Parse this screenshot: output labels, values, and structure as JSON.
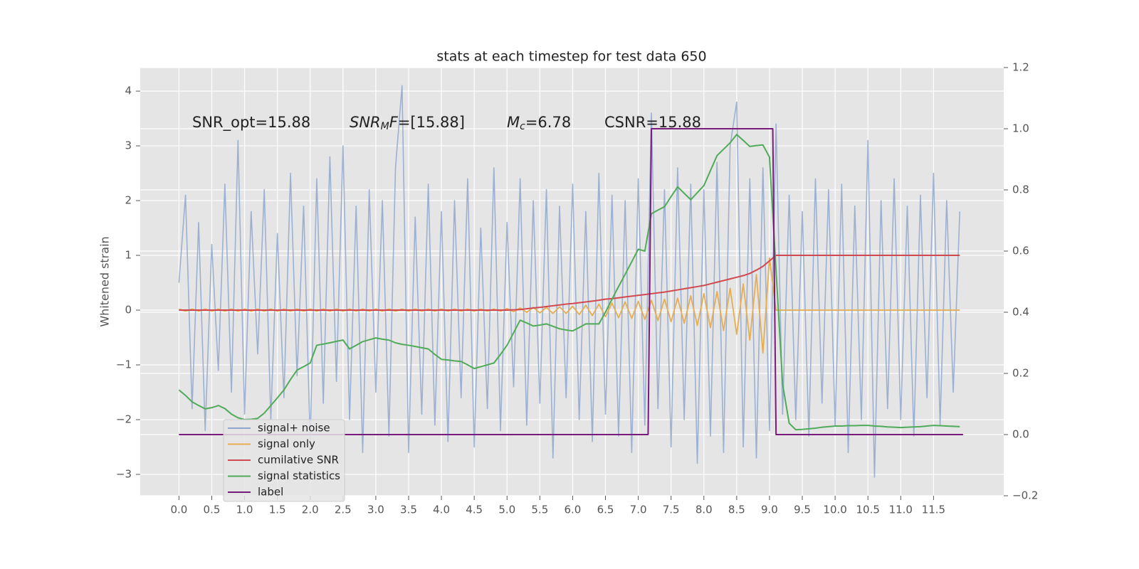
{
  "chart_data": {
    "type": "line",
    "title": "stats at each timestep for test data 650",
    "ylabel": "Whitened strain",
    "annotations": [
      [
        {
          "text": "SNR_opt=15.88",
          "style": "rm"
        }
      ],
      [
        {
          "text": "SNR",
          "style": "it"
        },
        {
          "text": "M",
          "style": "sub"
        },
        {
          "text": "F",
          "style": "it"
        },
        {
          "text": "=[15.88]",
          "style": "rm"
        }
      ],
      [
        {
          "text": "M",
          "style": "it"
        },
        {
          "text": "c",
          "style": "sub"
        },
        {
          "text": "=6.78",
          "style": "rm"
        }
      ],
      [
        {
          "text": "CSNR=15.88",
          "style": "rm"
        }
      ]
    ],
    "xlim": [
      -0.59,
      12.57
    ],
    "ylim": [
      -3.39,
      4.43
    ],
    "y2lim": [
      -0.2,
      1.2
    ],
    "grid": true,
    "legend": "lower left",
    "xticks": [
      {
        "value": 0,
        "label": "0.0"
      },
      0.5,
      {
        "value": 1,
        "label": "1.0"
      },
      1.5,
      {
        "value": 2,
        "label": "2.0"
      },
      2.5,
      {
        "value": 3,
        "label": "3.0"
      },
      3.5,
      {
        "value": 4,
        "label": "4.0"
      },
      4.5,
      {
        "value": 5,
        "label": "5.0"
      },
      5.5,
      {
        "value": 6,
        "label": "6.0"
      },
      6.5,
      {
        "value": 7,
        "label": "7.0"
      },
      7.5,
      {
        "value": 8,
        "label": "8.0"
      },
      8.5,
      {
        "value": 9,
        "label": "9.0"
      },
      9.5,
      {
        "value": 10,
        "label": "10.0"
      },
      10.5,
      {
        "value": 11,
        "label": "11.0"
      },
      11.5
    ],
    "yticks": [
      {
        "value": -3,
        "label": "−3"
      },
      {
        "value": -2,
        "label": "−2"
      },
      {
        "value": -1,
        "label": "−1"
      },
      0,
      1,
      2,
      3,
      4
    ],
    "y2ticks": [
      {
        "value": -0.2,
        "label": "−0.2"
      },
      {
        "value": 0,
        "label": "0.0"
      },
      0.2,
      0.4,
      0.6,
      0.8,
      {
        "value": 1,
        "label": "1.0"
      },
      1.2
    ],
    "x": [
      0,
      0.1,
      0.2,
      0.3,
      0.4,
      0.5,
      0.6,
      0.7,
      0.8,
      0.9,
      1,
      1.1,
      1.2,
      1.3,
      1.4,
      1.5,
      1.6,
      1.7,
      1.8,
      1.9,
      2,
      2.1,
      2.2,
      2.3,
      2.4,
      2.5,
      2.6,
      2.7,
      2.8,
      2.9,
      3,
      3.1,
      3.2,
      3.3,
      3.4,
      3.5,
      3.6,
      3.7,
      3.8,
      3.9,
      4,
      4.1,
      4.2,
      4.3,
      4.4,
      4.5,
      4.6,
      4.7,
      4.8,
      4.9,
      5,
      5.1,
      5.2,
      5.3,
      5.4,
      5.5,
      5.6,
      5.7,
      5.8,
      5.9,
      6,
      6.1,
      6.2,
      6.3,
      6.4,
      6.5,
      6.6,
      6.7,
      6.8,
      6.9,
      7,
      7.1,
      7.2,
      7.3,
      7.4,
      7.5,
      7.6,
      7.7,
      7.8,
      7.9,
      8,
      8.1,
      8.2,
      8.3,
      8.4,
      8.5,
      8.6,
      8.7,
      8.8,
      8.9,
      9,
      9.1,
      9.2,
      9.3,
      9.4,
      9.5,
      9.6,
      9.7,
      9.8,
      9.9,
      10,
      10.1,
      10.2,
      10.3,
      10.4,
      10.5,
      10.6,
      10.7,
      10.8,
      10.9,
      11,
      11.1,
      11.2,
      11.3,
      11.4,
      11.5,
      11.6,
      11.7,
      11.8,
      11.9
    ],
    "series": [
      {
        "name": "signal+ noise",
        "color": "#8fa7cf",
        "values": [
          0.5,
          2.1,
          -1.8,
          1.6,
          -2.2,
          1.2,
          -1.1,
          2.3,
          -1.5,
          3.1,
          -1.9,
          1.8,
          -0.8,
          2.2,
          -2.0,
          1.4,
          -1.6,
          2.5,
          -1.2,
          1.9,
          -2.4,
          2.4,
          -1.7,
          2.8,
          -1.3,
          3.0,
          -2.0,
          1.9,
          -2.6,
          2.2,
          -1.5,
          2.0,
          -2.3,
          2.6,
          4.1,
          -2.6,
          1.7,
          -1.9,
          2.3,
          -2.1,
          1.8,
          -2.4,
          2.0,
          -1.6,
          2.4,
          -2.5,
          1.5,
          -1.8,
          2.6,
          -2.2,
          1.6,
          -1.4,
          2.4,
          -2.1,
          2.0,
          -1.7,
          2.2,
          -2.7,
          1.9,
          -1.6,
          2.3,
          -2.0,
          1.8,
          -2.4,
          2.5,
          -1.9,
          2.1,
          -2.3,
          2.0,
          -2.6,
          2.4,
          -2.1,
          3.6,
          -1.8,
          2.2,
          -2.5,
          2.6,
          -2.0,
          2.3,
          -2.8,
          2.2,
          -2.3,
          2.7,
          -2.6,
          3.0,
          3.8,
          -2.5,
          2.4,
          -2.7,
          2.6,
          -2.2,
          3.4,
          -1.9,
          2.1,
          -2.0,
          1.8,
          -2.3,
          2.4,
          -1.7,
          2.2,
          -2.1,
          2.3,
          -2.6,
          1.9,
          -2.0,
          3.1,
          -3.05,
          2.0,
          -1.8,
          2.4,
          -2.0,
          1.9,
          -2.3,
          2.1,
          -1.6,
          2.5,
          -2.1,
          2.0,
          -1.5,
          1.8
        ]
      },
      {
        "name": "signal only",
        "color": "#e6ad52",
        "values": [
          0.02,
          -0.02,
          0.02,
          -0.02,
          0.02,
          -0.02,
          0.02,
          -0.02,
          0.02,
          -0.02,
          0.02,
          -0.02,
          0.02,
          -0.02,
          0.02,
          -0.02,
          0.02,
          -0.02,
          0.02,
          -0.02,
          0.02,
          -0.02,
          0.02,
          -0.02,
          0.02,
          -0.02,
          0.02,
          -0.02,
          0.02,
          -0.02,
          0.02,
          -0.02,
          0.02,
          -0.02,
          0.02,
          -0.02,
          0.02,
          -0.02,
          0.02,
          -0.02,
          0.02,
          -0.02,
          0.02,
          -0.02,
          0.02,
          -0.02,
          0.02,
          -0.02,
          0.02,
          -0.02,
          0.03,
          -0.03,
          0.04,
          -0.04,
          0.05,
          -0.05,
          0.05,
          -0.06,
          0.06,
          -0.06,
          0.07,
          -0.08,
          0.09,
          -0.1,
          0.11,
          -0.12,
          0.13,
          -0.14,
          0.15,
          -0.15,
          0.16,
          -0.17,
          0.18,
          -0.19,
          0.2,
          -0.21,
          0.22,
          -0.24,
          0.26,
          -0.28,
          0.3,
          -0.32,
          0.34,
          -0.37,
          0.4,
          -0.44,
          0.48,
          -0.55,
          0.65,
          -0.78,
          0.95,
          0,
          0,
          0,
          0,
          0,
          0,
          0,
          0,
          0,
          0,
          0,
          0,
          0,
          0,
          0,
          0,
          0,
          0,
          0,
          0,
          0,
          0,
          0,
          0,
          0,
          0,
          0,
          0,
          0
        ]
      },
      {
        "name": "cumilative SNR",
        "color": "#d1494e",
        "values": [
          0,
          0,
          0,
          0,
          0,
          0,
          0,
          0,
          0,
          0,
          0,
          0,
          0,
          0,
          0,
          0,
          0,
          0,
          0,
          0,
          0,
          0,
          0,
          0,
          0,
          0,
          0,
          0,
          0,
          0,
          0,
          0,
          0,
          0,
          0,
          0,
          0,
          0,
          0,
          0,
          0,
          0,
          0,
          0,
          0,
          0,
          0,
          0,
          0,
          0,
          0,
          0.005,
          0.01,
          0.025,
          0.04,
          0.05,
          0.065,
          0.08,
          0.095,
          0.11,
          0.12,
          0.135,
          0.15,
          0.165,
          0.18,
          0.2,
          0.21,
          0.225,
          0.24,
          0.255,
          0.27,
          0.285,
          0.3,
          0.315,
          0.33,
          0.35,
          0.37,
          0.39,
          0.41,
          0.43,
          0.45,
          0.48,
          0.51,
          0.54,
          0.57,
          0.6,
          0.63,
          0.67,
          0.73,
          0.8,
          0.9,
          1,
          1,
          1,
          1,
          1,
          1,
          1,
          1,
          1,
          1,
          1,
          1,
          1,
          1,
          1,
          1,
          1,
          1,
          1,
          1,
          1,
          1,
          1,
          1,
          1,
          1,
          1,
          1,
          1
        ]
      },
      {
        "name": "signal statistics",
        "color": "#4fab58",
        "axis": "y2",
        "values": [
          0.146,
          0.128,
          0.107,
          0.095,
          0.084,
          0.088,
          0.095,
          0.085,
          0.067,
          0.055,
          0.049,
          0.05,
          0.053,
          0.07,
          0.095,
          0.12,
          0.146,
          0.18,
          0.211,
          0.222,
          0.234,
          0.292,
          0.296,
          0.3,
          0.305,
          0.309,
          0.28,
          0.292,
          0.304,
          0.31,
          0.316,
          0.312,
          0.309,
          0.3,
          0.295,
          0.292,
          0.288,
          0.284,
          0.28,
          0.262,
          0.246,
          0.244,
          0.241,
          0.239,
          0.228,
          0.216,
          0.222,
          0.228,
          0.234,
          0.262,
          0.292,
          0.333,
          0.374,
          0.365,
          0.355,
          0.358,
          0.362,
          0.354,
          0.346,
          0.342,
          0.339,
          0.35,
          0.362,
          0.362,
          0.362,
          0.4,
          0.443,
          0.484,
          0.524,
          0.565,
          0.606,
          0.6,
          0.722,
          0.734,
          0.745,
          0.778,
          0.81,
          0.789,
          0.768,
          0.791,
          0.814,
          0.863,
          0.912,
          0.933,
          0.954,
          0.981,
          0.962,
          0.942,
          0.945,
          0.947,
          0.907,
          0.536,
          0.165,
          0.037,
          0.016,
          0.017,
          0.019,
          0.021,
          0.024,
          0.026,
          0.028,
          0.028,
          0.029,
          0.029,
          0.03,
          0.03,
          0.028,
          0.027,
          0.025,
          0.024,
          0.023,
          0.024,
          0.025,
          0.026,
          0.028,
          0.03,
          0.029,
          0.028,
          0.027,
          0.026
        ]
      },
      {
        "name": "label",
        "color": "#7a1a7c",
        "axis": "y2",
        "x": [
          0,
          7.15,
          7.2,
          9.05,
          9.1,
          11.95
        ],
        "values": [
          0,
          0,
          1,
          1,
          0,
          0
        ]
      }
    ]
  }
}
